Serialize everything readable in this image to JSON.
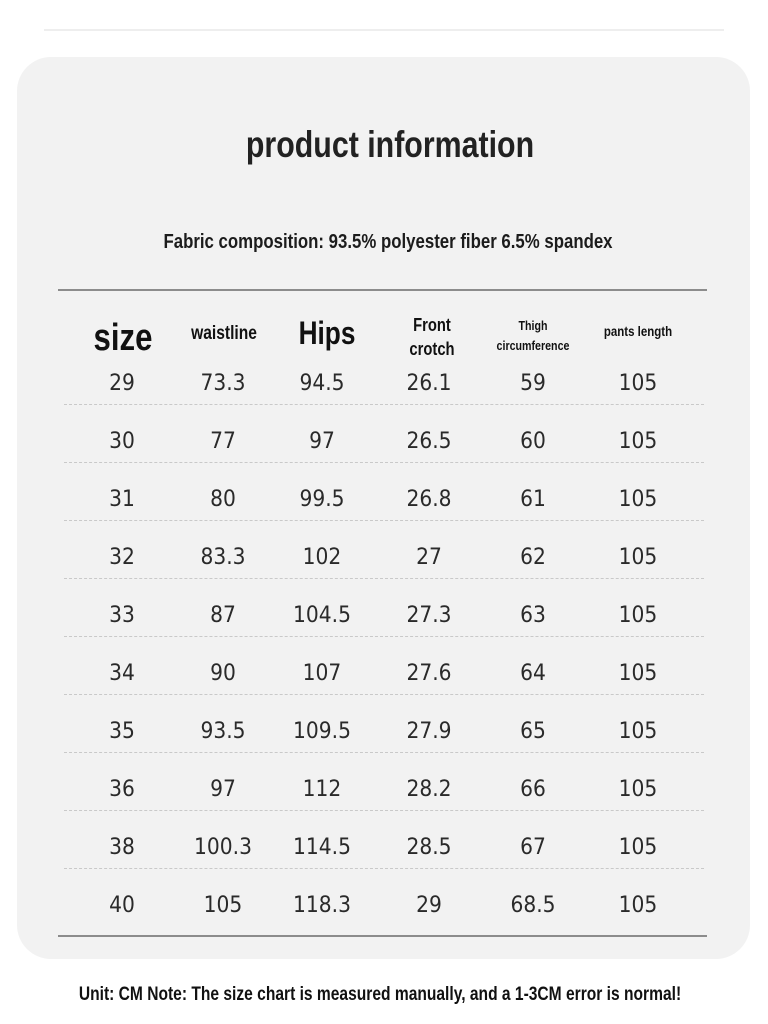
{
  "title": "product information",
  "fabric": "Fabric composition: 93.5% polyester fiber 6.5% spandex",
  "headers": {
    "size": "size",
    "waistline": "waistline",
    "hips": "Hips",
    "front_crotch_line1": "Front",
    "front_crotch_line2": "crotch",
    "thigh_line1": "Thigh",
    "thigh_line2": "circumference",
    "pants_length": "pants length"
  },
  "rows": [
    [
      "29",
      "73.3",
      "94.5",
      "26.1",
      "59",
      "105"
    ],
    [
      "30",
      "77",
      "97",
      "26.5",
      "60",
      "105"
    ],
    [
      "31",
      "80",
      "99.5",
      "26.8",
      "61",
      "105"
    ],
    [
      "32",
      "83.3",
      "102",
      "27",
      "62",
      "105"
    ],
    [
      "33",
      "87",
      "104.5",
      "27.3",
      "63",
      "105"
    ],
    [
      "34",
      "90",
      "107",
      "27.6",
      "64",
      "105"
    ],
    [
      "35",
      "93.5",
      "109.5",
      "27.9",
      "65",
      "105"
    ],
    [
      "36",
      "97",
      "112",
      "28.2",
      "66",
      "105"
    ],
    [
      "38",
      "100.3",
      "114.5",
      "28.5",
      "67",
      "105"
    ],
    [
      "40",
      "105",
      "118.3",
      "29",
      "68.5",
      "105"
    ]
  ],
  "footer": "Unit: CM Note: The size chart is measured manually, and a 1-3CM error is normal!"
}
